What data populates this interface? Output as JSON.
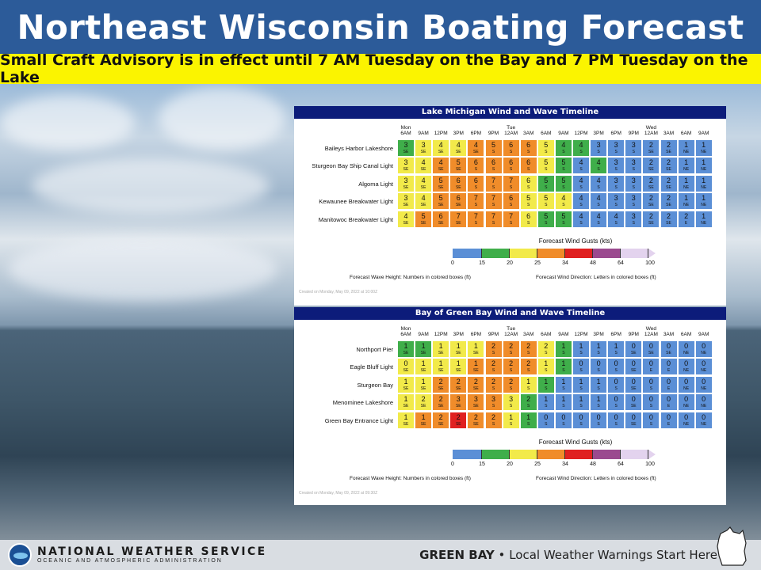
{
  "header": {
    "title": "Northeast Wisconsin Boating Forecast"
  },
  "advisory": {
    "text": "Small Craft Advisory is in effect until 7 AM  Tuesday on the Bay and 7 PM Tuesday on the Lake"
  },
  "colors": {
    "0-15": "#5b8fd6",
    "15-20": "#3fae4a",
    "20-25": "#f2ea4a",
    "25-34": "#f08c2a",
    "34-48": "#e02020",
    "48-64": "#9b4a8f",
    "64-100": "#e3d3ee"
  },
  "time_labels": [
    "Mon\n6AM",
    "9AM",
    "12PM",
    "3PM",
    "6PM",
    "9PM",
    "Tue\n12AM",
    "3AM",
    "6AM",
    "9AM",
    "12PM",
    "3PM",
    "6PM",
    "9PM",
    "Wed\n12AM",
    "3AM",
    "6AM",
    "9AM"
  ],
  "lake": {
    "title": "Lake Michigan Wind and Wave Timeline",
    "rows": [
      {
        "name": "Baileys Harbor Lakeshore",
        "waves": [
          "3",
          "3",
          "4",
          "4",
          "4",
          "5",
          "6",
          "6",
          "5",
          "4",
          "4",
          "3",
          "3",
          "3",
          "2",
          "2",
          "1",
          "1"
        ],
        "dirs": [
          "SE",
          "SE",
          "SE",
          "SE",
          "SE",
          "S",
          "S",
          "S",
          "S",
          "S",
          "S",
          "S",
          "S",
          "S",
          "SE",
          "SE",
          "NE",
          "NE"
        ],
        "gust": [
          "15-20",
          "20-25",
          "20-25",
          "20-25",
          "25-34",
          "25-34",
          "25-34",
          "25-34",
          "20-25",
          "15-20",
          "15-20",
          "0-15",
          "0-15",
          "0-15",
          "0-15",
          "0-15",
          "0-15",
          "0-15"
        ]
      },
      {
        "name": "Sturgeon Bay Ship Canal Light",
        "waves": [
          "3",
          "4",
          "4",
          "5",
          "6",
          "6",
          "6",
          "6",
          "5",
          "5",
          "4",
          "4",
          "3",
          "3",
          "2",
          "2",
          "1",
          "1"
        ],
        "dirs": [
          "SE",
          "SE",
          "SE",
          "SE",
          "S",
          "S",
          "S",
          "S",
          "S",
          "S",
          "S",
          "S",
          "S",
          "S",
          "SE",
          "SE",
          "NE",
          "NE"
        ],
        "gust": [
          "20-25",
          "20-25",
          "25-34",
          "25-34",
          "25-34",
          "25-34",
          "25-34",
          "25-34",
          "20-25",
          "15-20",
          "0-15",
          "15-20",
          "0-15",
          "0-15",
          "0-15",
          "0-15",
          "0-15",
          "0-15"
        ]
      },
      {
        "name": "Algoma Light",
        "waves": [
          "3",
          "4",
          "5",
          "6",
          "6",
          "7",
          "7",
          "6",
          "5",
          "5",
          "4",
          "4",
          "3",
          "3",
          "2",
          "2",
          "1",
          "1"
        ],
        "dirs": [
          "SE",
          "SE",
          "SE",
          "SE",
          "S",
          "S",
          "S",
          "S",
          "S",
          "S",
          "S",
          "S",
          "S",
          "S",
          "SE",
          "SE",
          "NE",
          "NE"
        ],
        "gust": [
          "20-25",
          "20-25",
          "25-34",
          "25-34",
          "25-34",
          "25-34",
          "25-34",
          "20-25",
          "15-20",
          "15-20",
          "0-15",
          "0-15",
          "0-15",
          "0-15",
          "0-15",
          "0-15",
          "0-15",
          "0-15"
        ]
      },
      {
        "name": "Kewaunee Breakwater Light",
        "waves": [
          "3",
          "4",
          "5",
          "6",
          "7",
          "7",
          "6",
          "5",
          "5",
          "4",
          "4",
          "4",
          "3",
          "3",
          "2",
          "2",
          "1",
          "1"
        ],
        "dirs": [
          "SE",
          "SE",
          "SE",
          "SE",
          "S",
          "S",
          "S",
          "S",
          "S",
          "S",
          "S",
          "S",
          "S",
          "S",
          "SE",
          "SE",
          "NE",
          "NE"
        ],
        "gust": [
          "20-25",
          "20-25",
          "25-34",
          "25-34",
          "25-34",
          "25-34",
          "25-34",
          "20-25",
          "20-25",
          "20-25",
          "0-15",
          "0-15",
          "0-15",
          "0-15",
          "0-15",
          "0-15",
          "0-15",
          "0-15"
        ]
      },
      {
        "name": "Manitowoc Breakwater Light",
        "waves": [
          "4",
          "5",
          "6",
          "7",
          "7",
          "7",
          "7",
          "6",
          "5",
          "5",
          "4",
          "4",
          "4",
          "3",
          "2",
          "2",
          "2",
          "1"
        ],
        "dirs": [
          "SE",
          "SE",
          "SE",
          "SE",
          "S",
          "S",
          "S",
          "S",
          "S",
          "S",
          "S",
          "S",
          "S",
          "S",
          "SE",
          "SE",
          "E",
          "NE"
        ],
        "gust": [
          "20-25",
          "25-34",
          "25-34",
          "25-34",
          "25-34",
          "25-34",
          "25-34",
          "20-25",
          "15-20",
          "15-20",
          "0-15",
          "0-15",
          "0-15",
          "0-15",
          "0-15",
          "0-15",
          "0-15",
          "0-15"
        ]
      }
    ],
    "legend_title": "Forecast Wind Gusts (kts)",
    "foot_left": "Forecast Wave Height:  Numbers in colored boxes (ft)",
    "foot_right": "Forecast Wind Direction:  Letters in colored boxes (ft)",
    "created": "Created on Monday, May 09, 2022 at 10:00Z"
  },
  "bay": {
    "title": "Bay of Green Bay Wind and Wave Timeline",
    "rows": [
      {
        "name": "Northport Pier",
        "waves": [
          "1",
          "1",
          "1",
          "1",
          "1",
          "2",
          "2",
          "2",
          "2",
          "1",
          "1",
          "1",
          "1",
          "0",
          "0",
          "0",
          "0",
          "0"
        ],
        "dirs": [
          "SE",
          "SE",
          "SE",
          "SE",
          "SE",
          "S",
          "S",
          "S",
          "S",
          "S",
          "S",
          "S",
          "S",
          "SE",
          "SE",
          "SE",
          "NE",
          "NE"
        ],
        "gust": [
          "15-20",
          "15-20",
          "20-25",
          "20-25",
          "20-25",
          "25-34",
          "25-34",
          "25-34",
          "20-25",
          "15-20",
          "0-15",
          "0-15",
          "0-15",
          "0-15",
          "0-15",
          "0-15",
          "0-15",
          "0-15"
        ]
      },
      {
        "name": "Eagle Bluff Light",
        "waves": [
          "0",
          "1",
          "1",
          "1",
          "1",
          "2",
          "2",
          "2",
          "1",
          "1",
          "0",
          "0",
          "0",
          "0",
          "0",
          "0",
          "0",
          "0"
        ],
        "dirs": [
          "SE",
          "SE",
          "SE",
          "SE",
          "SE",
          "S",
          "S",
          "S",
          "S",
          "S",
          "S",
          "S",
          "S",
          "SE",
          "E",
          "E",
          "NE",
          "NE"
        ],
        "gust": [
          "20-25",
          "20-25",
          "20-25",
          "20-25",
          "25-34",
          "25-34",
          "25-34",
          "25-34",
          "20-25",
          "15-20",
          "0-15",
          "0-15",
          "0-15",
          "0-15",
          "0-15",
          "0-15",
          "0-15",
          "0-15"
        ]
      },
      {
        "name": "Sturgeon Bay",
        "waves": [
          "1",
          "1",
          "2",
          "2",
          "2",
          "2",
          "2",
          "1",
          "1",
          "1",
          "1",
          "1",
          "0",
          "0",
          "0",
          "0",
          "0",
          "0"
        ],
        "dirs": [
          "SE",
          "SE",
          "SE",
          "SE",
          "SE",
          "S",
          "S",
          "S",
          "S",
          "S",
          "S",
          "S",
          "S",
          "SE",
          "S",
          "E",
          "NE",
          "NE"
        ],
        "gust": [
          "20-25",
          "20-25",
          "25-34",
          "25-34",
          "25-34",
          "25-34",
          "25-34",
          "20-25",
          "15-20",
          "0-15",
          "0-15",
          "0-15",
          "0-15",
          "0-15",
          "0-15",
          "0-15",
          "0-15",
          "0-15"
        ]
      },
      {
        "name": "Menominee Lakeshore",
        "waves": [
          "1",
          "2",
          "2",
          "3",
          "3",
          "3",
          "3",
          "2",
          "1",
          "1",
          "1",
          "1",
          "0",
          "0",
          "0",
          "0",
          "0",
          "0"
        ],
        "dirs": [
          "SE",
          "SE",
          "SE",
          "SE",
          "SE",
          "S",
          "S",
          "S",
          "S",
          "S",
          "S",
          "S",
          "S",
          "SE",
          "S",
          "E",
          "NE",
          "NE"
        ],
        "gust": [
          "20-25",
          "20-25",
          "25-34",
          "25-34",
          "25-34",
          "25-34",
          "20-25",
          "15-20",
          "0-15",
          "0-15",
          "0-15",
          "0-15",
          "0-15",
          "0-15",
          "0-15",
          "0-15",
          "0-15",
          "0-15"
        ]
      },
      {
        "name": "Green Bay Entrance Light",
        "waves": [
          "1",
          "1",
          "2",
          "2",
          "2",
          "2",
          "1",
          "1",
          "0",
          "0",
          "0",
          "0",
          "0",
          "0",
          "0",
          "0",
          "0",
          "0"
        ],
        "dirs": [
          "SE",
          "SE",
          "SE",
          "SE",
          "SE",
          "S",
          "S",
          "S",
          "S",
          "S",
          "S",
          "S",
          "S",
          "SE",
          "S",
          "E",
          "NE",
          "NE"
        ],
        "gust": [
          "20-25",
          "25-34",
          "25-34",
          "34-48",
          "25-34",
          "25-34",
          "20-25",
          "15-20",
          "0-15",
          "0-15",
          "0-15",
          "0-15",
          "0-15",
          "0-15",
          "0-15",
          "0-15",
          "0-15",
          "0-15"
        ]
      }
    ],
    "legend_title": "Forecast Wind Gusts (kts)",
    "foot_left": "Forecast Wave Height:  Numbers in colored boxes (ft)",
    "foot_right": "Forecast Wind Direction:  Letters in colored boxes (ft)",
    "created": "Created on Monday, May 09, 2022 at 09:30Z"
  },
  "legend_ticks": [
    "0",
    "15",
    "20",
    "25",
    "34",
    "48",
    "64",
    "100"
  ],
  "footer": {
    "agency": "NATIONAL WEATHER SERVICE",
    "agency_sub": "OCEANIC AND ATMOSPHERIC ADMINISTRATION",
    "office": "GREEN BAY",
    "bullet": "•",
    "tagline": "Local Weather Warnings Start Here",
    "logo_text": "NOAA"
  }
}
